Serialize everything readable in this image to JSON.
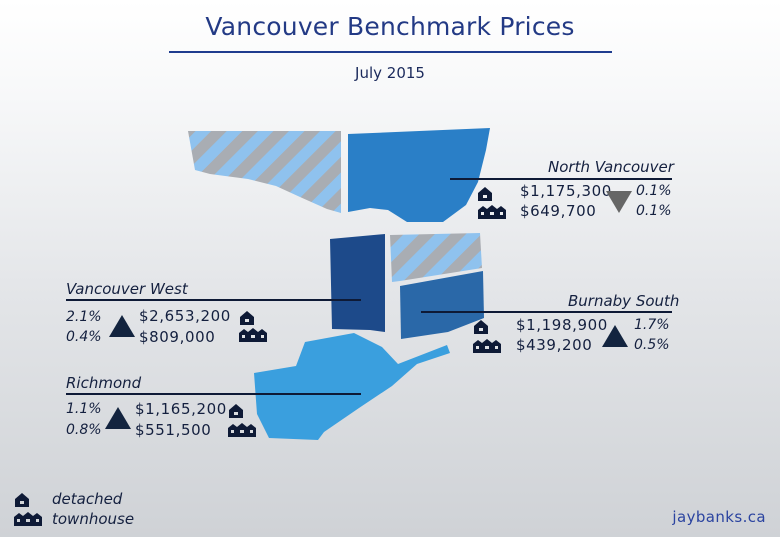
{
  "header": {
    "title": "Vancouver Benchmark Prices",
    "subtitle": "July 2015"
  },
  "colors": {
    "north_vancouver": "#2a7fc7",
    "vancouver_west": "#1d4a8a",
    "burnaby_south": "#2a68a8",
    "richmond": "#3a9fde",
    "hatch_light": "#8fc2ee",
    "hatch_gray": "#a9adb3",
    "up_arrow": "#13243f",
    "down_arrow": "#666666"
  },
  "legend": {
    "detached_label": "detached",
    "detached_icon": "house-icon",
    "townhouse_label": "townhouse",
    "townhouse_icon": "townhouse-icon"
  },
  "regions": {
    "north_vancouver": {
      "name": "North Vancouver",
      "detached_price": "$1,175,300",
      "townhouse_price": "$649,700",
      "direction": "down",
      "detached_change": "0.1%",
      "townhouse_change": "0.1%"
    },
    "vancouver_west": {
      "name": "Vancouver West",
      "detached_price": "$2,653,200",
      "townhouse_price": "$809,000",
      "direction": "up",
      "detached_change": "2.1%",
      "townhouse_change": "0.4%"
    },
    "burnaby_south": {
      "name": "Burnaby South",
      "detached_price": "$1,198,900",
      "townhouse_price": "$439,200",
      "direction": "up",
      "detached_change": "1.7%",
      "townhouse_change": "0.5%"
    },
    "richmond": {
      "name": "Richmond",
      "detached_price": "$1,165,200",
      "townhouse_price": "$551,500",
      "direction": "up",
      "detached_change": "1.1%",
      "townhouse_change": "0.8%"
    }
  },
  "footer": {
    "brand": "jaybanks.ca"
  }
}
